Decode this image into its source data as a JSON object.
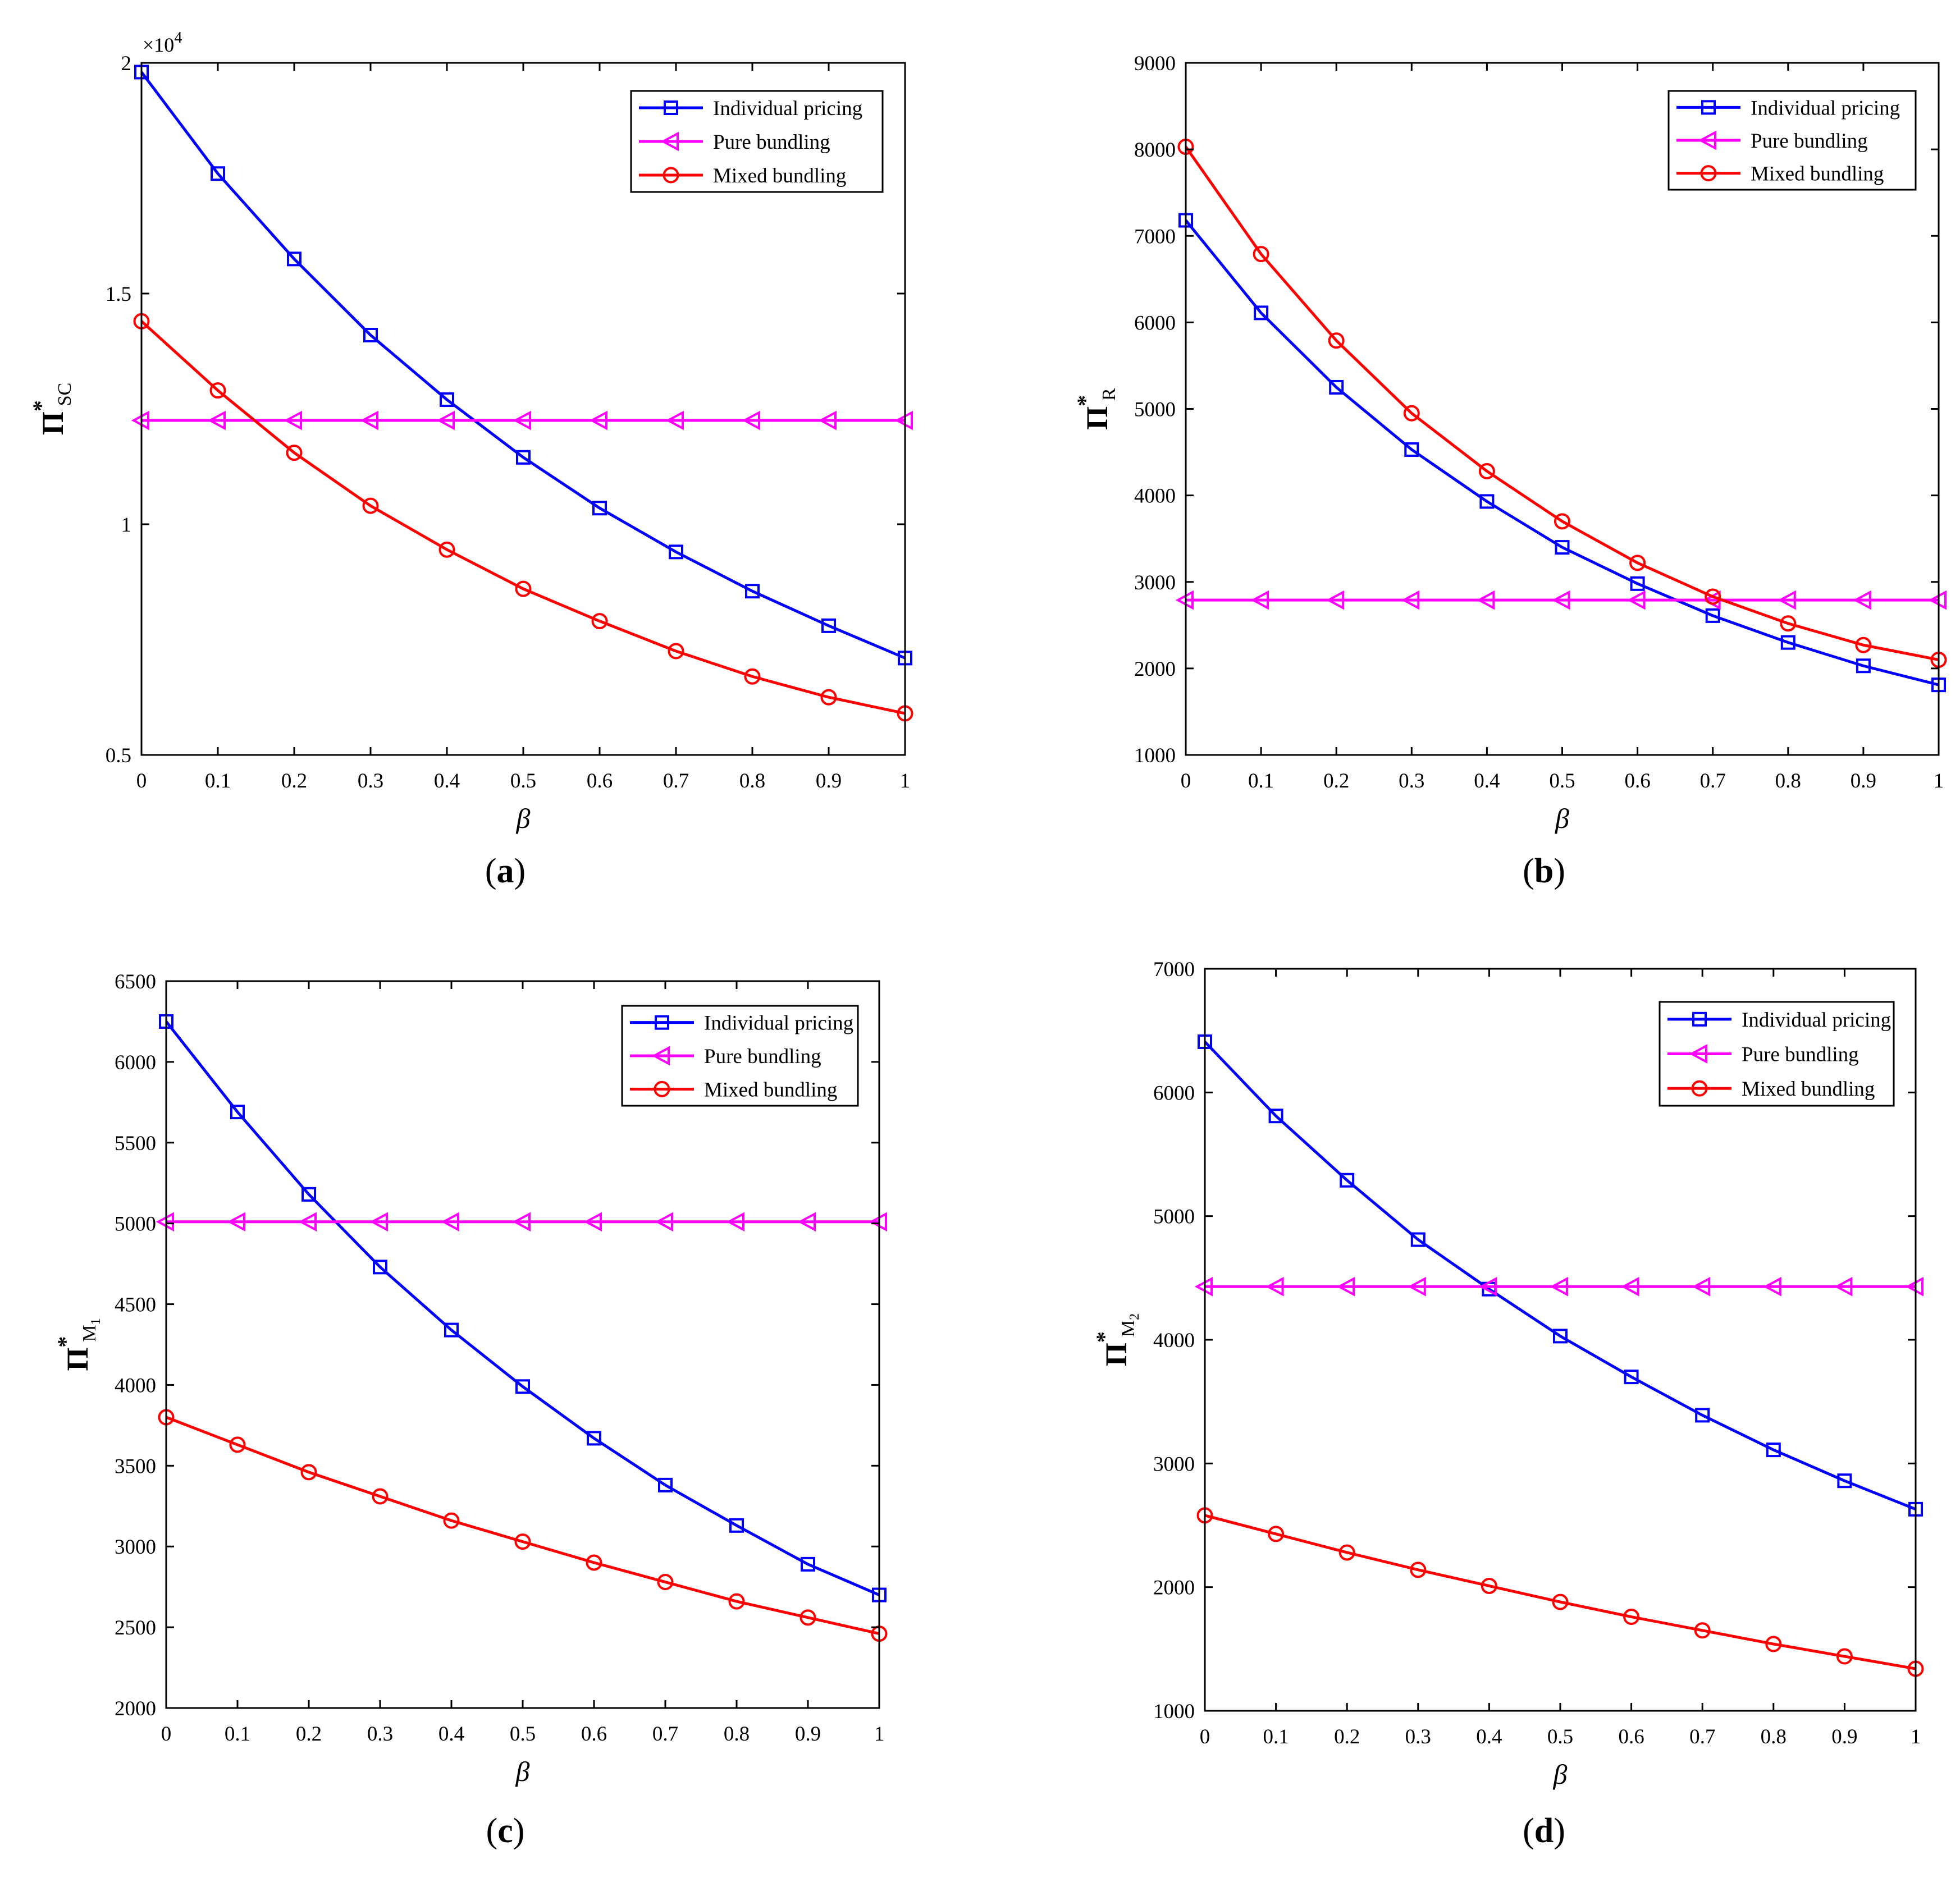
{
  "chart_data": [
    {
      "type": "line",
      "panel": "a",
      "panel_label": "a",
      "xlabel": "β",
      "ylabel": {
        "main": "Π",
        "sup": "*",
        "sub": "SC",
        "subsub": ""
      },
      "multiplier": {
        "base": "×10",
        "exp": "4"
      },
      "x": [
        0,
        0.1,
        0.2,
        0.3,
        0.4,
        0.5,
        0.6,
        0.7,
        0.8,
        0.9,
        1
      ],
      "xticks": [
        "0",
        "0.1",
        "0.2",
        "0.3",
        "0.4",
        "0.5",
        "0.6",
        "0.7",
        "0.8",
        "0.9",
        "1"
      ],
      "ylim": [
        0.5,
        2
      ],
      "yticks": [
        0.5,
        1,
        1.5,
        2
      ],
      "ytick_labels": [
        "0.5",
        "1",
        "1.5",
        "2"
      ],
      "series": [
        {
          "name": "Individual pricing",
          "color": "#0000ff",
          "marker": "square",
          "values": [
            1.98,
            1.76,
            1.575,
            1.41,
            1.27,
            1.145,
            1.035,
            0.94,
            0.855,
            0.78,
            0.71
          ]
        },
        {
          "name": "Pure bundling",
          "color": "#ff00ff",
          "marker": "triangle-left",
          "values": [
            1.225,
            1.225,
            1.225,
            1.225,
            1.225,
            1.225,
            1.225,
            1.225,
            1.225,
            1.225,
            1.225
          ]
        },
        {
          "name": "Mixed bundling",
          "color": "#ff0000",
          "marker": "circle",
          "values": [
            1.44,
            1.29,
            1.155,
            1.04,
            0.945,
            0.86,
            0.79,
            0.725,
            0.67,
            0.625,
            0.59
          ]
        }
      ]
    },
    {
      "type": "line",
      "panel": "b",
      "panel_label": "b",
      "xlabel": "β",
      "ylabel": {
        "main": "Π",
        "sup": "*",
        "sub": "R",
        "subsub": ""
      },
      "x": [
        0,
        0.1,
        0.2,
        0.3,
        0.4,
        0.5,
        0.6,
        0.7,
        0.8,
        0.9,
        1
      ],
      "xticks": [
        "0",
        "0.1",
        "0.2",
        "0.3",
        "0.4",
        "0.5",
        "0.6",
        "0.7",
        "0.8",
        "0.9",
        "1"
      ],
      "ylim": [
        1000,
        9000
      ],
      "yticks": [
        1000,
        2000,
        3000,
        4000,
        5000,
        6000,
        7000,
        8000,
        9000
      ],
      "ytick_labels": [
        "1000",
        "2000",
        "3000",
        "4000",
        "5000",
        "6000",
        "7000",
        "8000",
        "9000"
      ],
      "series": [
        {
          "name": "Individual pricing",
          "color": "#0000ff",
          "marker": "square",
          "values": [
            7180,
            6110,
            5250,
            4530,
            3930,
            3400,
            2980,
            2610,
            2300,
            2030,
            1810
          ]
        },
        {
          "name": "Pure bundling",
          "color": "#ff00ff",
          "marker": "triangle-left",
          "values": [
            2790,
            2790,
            2790,
            2790,
            2790,
            2790,
            2790,
            2790,
            2790,
            2790,
            2790
          ]
        },
        {
          "name": "Mixed bundling",
          "color": "#ff0000",
          "marker": "circle",
          "values": [
            8030,
            6790,
            5790,
            4950,
            4280,
            3700,
            3220,
            2830,
            2520,
            2270,
            2100
          ]
        }
      ]
    },
    {
      "type": "line",
      "panel": "c",
      "panel_label": "c",
      "xlabel": "β",
      "ylabel": {
        "main": "Π",
        "sup": "*",
        "sub": "M",
        "subsub": "1"
      },
      "x": [
        0,
        0.1,
        0.2,
        0.3,
        0.4,
        0.5,
        0.6,
        0.7,
        0.8,
        0.9,
        1
      ],
      "xticks": [
        "0",
        "0.1",
        "0.2",
        "0.3",
        "0.4",
        "0.5",
        "0.6",
        "0.7",
        "0.8",
        "0.9",
        "1"
      ],
      "ylim": [
        2000,
        6500
      ],
      "yticks": [
        2000,
        2500,
        3000,
        3500,
        4000,
        4500,
        5000,
        5500,
        6000,
        6500
      ],
      "ytick_labels": [
        "2000",
        "2500",
        "3000",
        "3500",
        "4000",
        "4500",
        "5000",
        "5500",
        "6000",
        "6500"
      ],
      "series": [
        {
          "name": "Individual pricing",
          "color": "#0000ff",
          "marker": "square",
          "values": [
            6250,
            5690,
            5180,
            4730,
            4340,
            3990,
            3670,
            3380,
            3130,
            2890,
            2700
          ]
        },
        {
          "name": "Pure bundling",
          "color": "#ff00ff",
          "marker": "triangle-left",
          "values": [
            5010,
            5010,
            5010,
            5010,
            5010,
            5010,
            5010,
            5010,
            5010,
            5010,
            5010
          ]
        },
        {
          "name": "Mixed bundling",
          "color": "#ff0000",
          "marker": "circle",
          "values": [
            3800,
            3630,
            3460,
            3310,
            3160,
            3030,
            2900,
            2780,
            2660,
            2560,
            2460
          ]
        }
      ]
    },
    {
      "type": "line",
      "panel": "d",
      "panel_label": "d",
      "xlabel": "β",
      "ylabel": {
        "main": "Π",
        "sup": "*",
        "sub": "M",
        "subsub": "2"
      },
      "x": [
        0,
        0.1,
        0.2,
        0.3,
        0.4,
        0.5,
        0.6,
        0.7,
        0.8,
        0.9,
        1
      ],
      "xticks": [
        "0",
        "0.1",
        "0.2",
        "0.3",
        "0.4",
        "0.5",
        "0.6",
        "0.7",
        "0.8",
        "0.9",
        "1"
      ],
      "ylim": [
        1000,
        7000
      ],
      "yticks": [
        1000,
        2000,
        3000,
        4000,
        5000,
        6000,
        7000
      ],
      "ytick_labels": [
        "1000",
        "2000",
        "3000",
        "4000",
        "5000",
        "6000",
        "7000"
      ],
      "series": [
        {
          "name": "Individual pricing",
          "color": "#0000ff",
          "marker": "square",
          "values": [
            6410,
            5810,
            5290,
            4810,
            4410,
            4030,
            3700,
            3390,
            3110,
            2860,
            2630
          ]
        },
        {
          "name": "Pure bundling",
          "color": "#ff00ff",
          "marker": "triangle-left",
          "values": [
            4430,
            4430,
            4430,
            4430,
            4430,
            4430,
            4430,
            4430,
            4430,
            4430,
            4430
          ]
        },
        {
          "name": "Mixed bundling",
          "color": "#ff0000",
          "marker": "circle",
          "values": [
            2580,
            2430,
            2280,
            2140,
            2010,
            1880,
            1760,
            1650,
            1540,
            1440,
            1340
          ]
        }
      ]
    }
  ]
}
